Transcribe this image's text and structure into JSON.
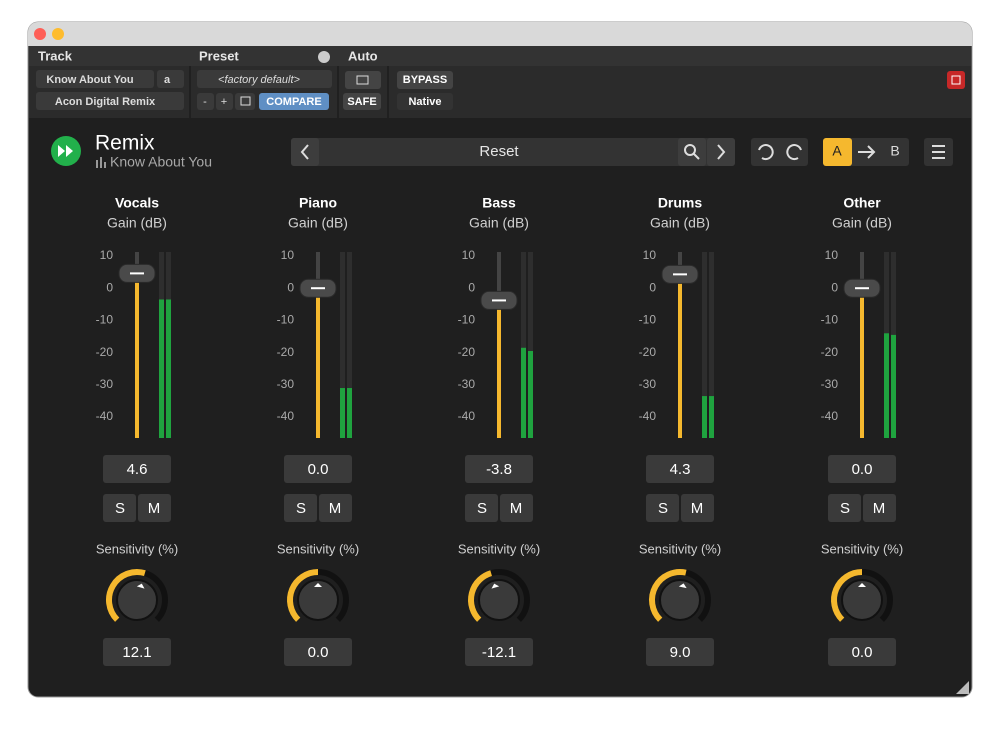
{
  "header": {
    "track_label": "Track",
    "track_name": "Know About You",
    "track_letter": "a",
    "plugin_name": "Acon Digital Remix",
    "preset_label": "Preset",
    "preset_name": "<factory default>",
    "minus": "-",
    "plus": "+",
    "compare": "COMPARE",
    "auto_label": "Auto",
    "safe": "SAFE",
    "bypass": "BYPASS",
    "native": "Native"
  },
  "plugin": {
    "title": "Remix",
    "subtitle": "Know About You",
    "preset": "Reset",
    "a": "A",
    "b": "B"
  },
  "scale": [
    10,
    0,
    -10,
    -20,
    -30,
    -40
  ],
  "channels": [
    {
      "name": "Vocals",
      "gain_label": "Gain (dB)",
      "gain": {
        "value": 4.6,
        "label": "4.6"
      },
      "meter": [
        -3.5,
        -3.5
      ],
      "solo": "S",
      "mute": "M",
      "sensitivity_label": "Sensitivity (%)",
      "sensitivity": {
        "value": 12.1,
        "label": "12.1"
      }
    },
    {
      "name": "Piano",
      "gain_label": "Gain (dB)",
      "gain": {
        "value": 0,
        "label": "0.0"
      },
      "meter": [
        -31,
        -31
      ],
      "solo": "S",
      "mute": "M",
      "sensitivity_label": "Sensitivity (%)",
      "sensitivity": {
        "value": 0,
        "label": "0.0"
      }
    },
    {
      "name": "Bass",
      "gain_label": "Gain (dB)",
      "gain": {
        "value": -3.8,
        "label": "-3.8"
      },
      "meter": [
        -18.5,
        -19.5
      ],
      "solo": "S",
      "mute": "M",
      "sensitivity_label": "Sensitivity (%)",
      "sensitivity": {
        "value": -12.1,
        "label": "-12.1"
      }
    },
    {
      "name": "Drums",
      "gain_label": "Gain (dB)",
      "gain": {
        "value": 4.3,
        "label": "4.3"
      },
      "meter": [
        -33.5,
        -33.5
      ],
      "solo": "S",
      "mute": "M",
      "sensitivity_label": "Sensitivity (%)",
      "sensitivity": {
        "value": 9,
        "label": "9.0"
      }
    },
    {
      "name": "Other",
      "gain_label": "Gain (dB)",
      "gain": {
        "value": 0,
        "label": "0.0"
      },
      "meter": [
        -14,
        -14.5
      ],
      "solo": "S",
      "mute": "M",
      "sensitivity_label": "Sensitivity (%)",
      "sensitivity": {
        "value": 0,
        "label": "0.0"
      }
    }
  ]
}
